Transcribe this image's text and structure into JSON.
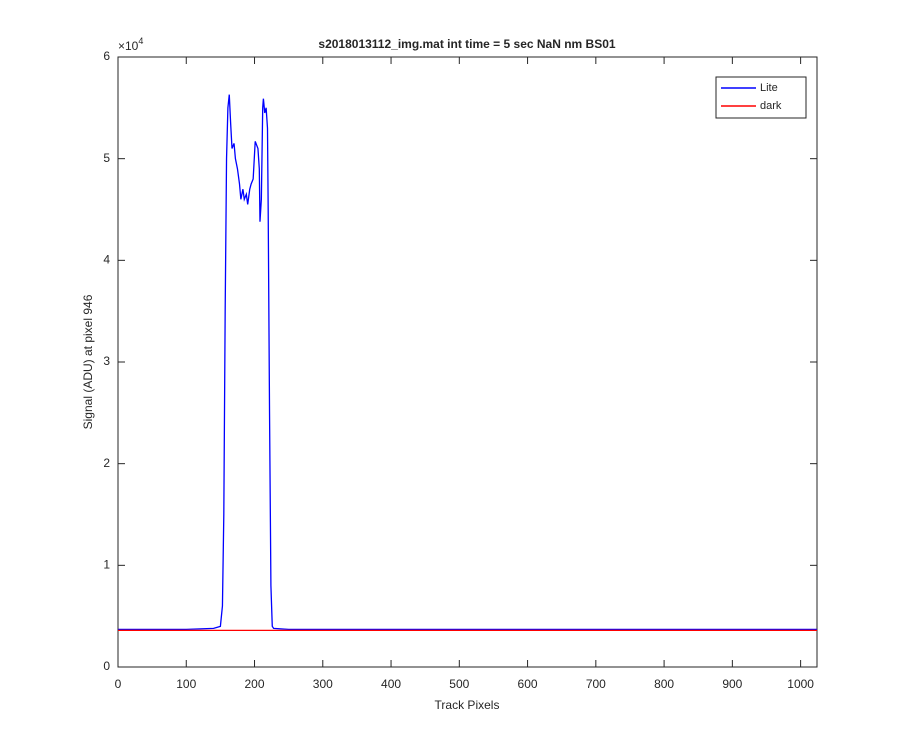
{
  "chart_data": {
    "type": "line",
    "title": "s2018013112_img.mat int time = 5 sec  NaN nm BS01",
    "x_label": "Track Pixels",
    "y_label": "Signal (ADU) at pixel 946",
    "y_multiplier": {
      "base": "×10",
      "exponent": "4"
    },
    "x": [
      0,
      50,
      100,
      140,
      150,
      153,
      155,
      157,
      159,
      161,
      163,
      165,
      167,
      170,
      172,
      175,
      178,
      180,
      183,
      185,
      188,
      190,
      193,
      195,
      198,
      201,
      205,
      207,
      208,
      210,
      212,
      213,
      215,
      217,
      219,
      220,
      222,
      224,
      226,
      228,
      250,
      300,
      400,
      500,
      600,
      700,
      800,
      900,
      1000,
      1024
    ],
    "series": [
      {
        "name": "Lite",
        "color": "#0000ff",
        "values": [
          0.37,
          0.37,
          0.37,
          0.38,
          0.4,
          0.6,
          1.5,
          3.5,
          5.0,
          5.5,
          5.63,
          5.35,
          5.1,
          5.15,
          5.0,
          4.9,
          4.75,
          4.6,
          4.7,
          4.6,
          4.65,
          4.55,
          4.7,
          4.75,
          4.8,
          5.17,
          5.1,
          4.9,
          4.38,
          4.6,
          5.5,
          5.59,
          5.45,
          5.5,
          5.3,
          4.5,
          2.5,
          0.8,
          0.4,
          0.38,
          0.37,
          0.37,
          0.37,
          0.37,
          0.37,
          0.37,
          0.37,
          0.37,
          0.37,
          0.37
        ]
      },
      {
        "name": "dark",
        "color": "#ff0000",
        "values": [
          0.36,
          0.36,
          0.36,
          0.36,
          0.36,
          0.36,
          0.36,
          0.36,
          0.36,
          0.36,
          0.36,
          0.36,
          0.36,
          0.36,
          0.36,
          0.36,
          0.36,
          0.36,
          0.36,
          0.36,
          0.36,
          0.36,
          0.36,
          0.36,
          0.36,
          0.36,
          0.36,
          0.36,
          0.36,
          0.36,
          0.36,
          0.36,
          0.36,
          0.36,
          0.36,
          0.36,
          0.36,
          0.36,
          0.36,
          0.36,
          0.36,
          0.36,
          0.36,
          0.36,
          0.36,
          0.36,
          0.36,
          0.36,
          0.36,
          0.36
        ]
      }
    ],
    "xlim": [
      0,
      1024
    ],
    "xticks": [
      0,
      100,
      200,
      300,
      400,
      500,
      600,
      700,
      800,
      900,
      1000
    ],
    "ylim": [
      0,
      6
    ],
    "yticks": [
      0,
      1,
      2,
      3,
      4,
      5,
      6
    ],
    "legend": "top-right",
    "grid": false
  }
}
